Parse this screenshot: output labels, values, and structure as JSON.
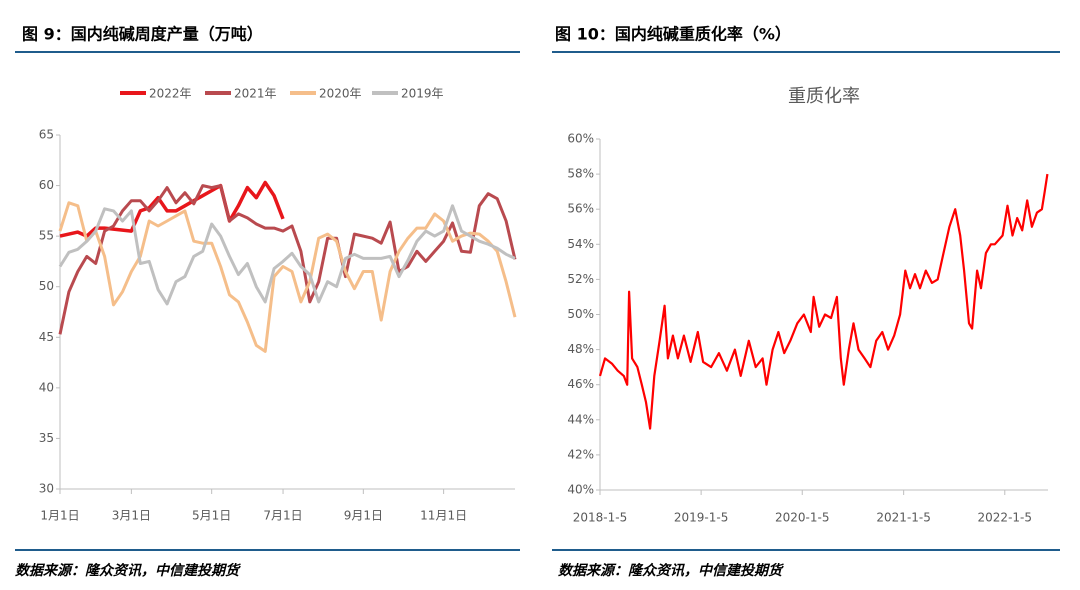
{
  "figures": [
    {
      "caption": "图 9：国内纯碱周度产量（万吨）",
      "source": "数据来源：隆众资讯，中信建投期货"
    },
    {
      "caption": "图 10：国内纯碱重质化率（%）",
      "source": "数据来源：隆众资讯，中信建投期货"
    }
  ],
  "chart_data": [
    {
      "type": "line",
      "legend": "top",
      "categories": [
        "1月1日",
        null,
        null,
        null,
        null,
        null,
        null,
        null,
        "3月1日",
        null,
        null,
        null,
        null,
        null,
        null,
        null,
        null,
        "5月1日",
        null,
        null,
        null,
        null,
        null,
        null,
        null,
        "7月1日",
        null,
        null,
        null,
        null,
        null,
        null,
        null,
        null,
        "9月1日",
        null,
        null,
        null,
        null,
        null,
        null,
        null,
        null,
        "11月1日",
        null,
        null,
        null,
        null,
        null,
        null,
        null,
        null
      ],
      "ylim": [
        30,
        65
      ],
      "yticks": [
        30,
        35,
        40,
        45,
        50,
        55,
        60,
        65
      ],
      "series": [
        {
          "name": "2022年",
          "color": "#e8161b",
          "values": [
            55,
            55.2,
            55.4,
            55,
            55.8,
            55.8,
            55.7,
            55.6,
            55.5,
            57.5,
            57.8,
            58.8,
            57.5,
            57.5,
            58,
            58.5,
            59,
            59.5,
            60,
            56.5,
            58,
            59.8,
            58.8,
            60.3,
            59,
            56.7,
            null,
            null,
            null,
            null,
            null,
            null,
            null,
            null,
            null,
            null,
            null,
            null,
            null,
            null,
            null,
            null,
            null,
            null,
            null,
            null,
            null,
            null,
            null,
            null,
            null,
            null
          ]
        },
        {
          "name": "2021年",
          "color": "#b94a4f",
          "values": [
            45.3,
            49.5,
            51.5,
            53,
            52.3,
            55.5,
            56,
            57.5,
            58.5,
            58.5,
            57.5,
            58.5,
            59.8,
            58.3,
            59.3,
            58.2,
            60,
            59.8,
            60,
            56.5,
            57.2,
            56.8,
            56.2,
            55.8,
            55.8,
            55.5,
            56,
            53.5,
            48.5,
            50.5,
            54.8,
            54.8,
            51,
            55.2,
            55,
            54.8,
            54.3,
            56.4,
            51.5,
            52,
            53.5,
            52.5,
            53.5,
            54.5,
            56.3,
            53.5,
            53.4,
            58,
            59.2,
            58.7,
            56.5,
            52.7
          ]
        },
        {
          "name": "2020年",
          "color": "#f5be8a",
          "values": [
            55.5,
            58.3,
            58,
            54.5,
            55.5,
            53,
            48.2,
            49.5,
            51.5,
            53,
            56.5,
            56,
            56.5,
            57,
            57.5,
            54.5,
            54.3,
            54.3,
            52,
            49.2,
            48.5,
            46.5,
            44.2,
            43.6,
            51,
            52,
            51.5,
            48.5,
            50.5,
            54.8,
            55.2,
            54.5,
            51.5,
            49.8,
            51.5,
            51.5,
            46.7,
            51.5,
            53.5,
            54.8,
            55.8,
            55.8,
            57.2,
            56.5,
            54.5,
            55,
            55.3,
            55.2,
            54.5,
            53.5,
            50.5,
            47
          ]
        },
        {
          "name": "2019年",
          "color": "#c0c0c0",
          "values": [
            52,
            53.4,
            53.7,
            54.5,
            55.5,
            57.7,
            57.5,
            56.5,
            57.5,
            52.3,
            52.5,
            49.7,
            48.3,
            50.5,
            51,
            53,
            53.5,
            56.2,
            55,
            53,
            51.2,
            52.3,
            50,
            48.5,
            51.8,
            52.5,
            53.3,
            52,
            51.2,
            48.5,
            50.5,
            50,
            52.8,
            53.2,
            52.8,
            52.8,
            52.8,
            53,
            51,
            52.6,
            54.5,
            55.5,
            55,
            55.5,
            58,
            55.5,
            55,
            54.5,
            54.2,
            53.8,
            53.2,
            52.8
          ]
        }
      ]
    },
    {
      "type": "line",
      "title": "重质化率",
      "color": "#ff0000",
      "x": [
        "2018-1-5",
        "2018-1-23",
        "2018-2-17",
        "2018-3-10",
        "2018-4-1",
        "2018-4-13",
        "2018-4-20",
        "2018-5-1",
        "2018-5-20",
        "2018-6-5",
        "2018-6-20",
        "2018-7-5",
        "2018-7-20",
        "2018-8-8",
        "2018-8-26",
        "2018-9-7",
        "2018-9-25",
        "2018-10-13",
        "2018-11-4",
        "2018-11-28",
        "2018-12-24",
        "2019-1-12",
        "2019-2-10",
        "2019-3-10",
        "2019-4-8",
        "2019-5-7",
        "2019-5-28",
        "2019-6-26",
        "2019-7-21",
        "2019-8-15",
        "2019-8-29",
        "2019-9-20",
        "2019-10-11",
        "2019-11-1",
        "2019-11-23",
        "2019-12-18",
        "2020-1-11",
        "2020-2-5",
        "2020-2-15",
        "2020-3-6",
        "2020-3-27",
        "2020-4-18",
        "2020-5-9",
        "2020-5-23",
        "2020-6-3",
        "2020-6-21",
        "2020-7-8",
        "2020-7-26",
        "2020-8-17",
        "2020-9-7",
        "2020-9-28",
        "2020-10-20",
        "2020-11-10",
        "2020-12-2",
        "2020-12-23",
        "2021-1-11",
        "2021-1-28",
        "2021-2-15",
        "2021-3-5",
        "2021-3-26",
        "2021-4-17",
        "2021-5-8",
        "2021-5-29",
        "2021-6-19",
        "2021-7-10",
        "2021-7-28",
        "2021-8-11",
        "2021-8-29",
        "2021-9-9",
        "2021-9-27",
        "2021-10-11",
        "2021-10-29",
        "2021-11-16",
        "2021-11-30",
        "2021-12-28",
        "2022-1-15",
        "2022-2-2",
        "2022-2-19",
        "2022-3-9",
        "2022-3-27",
        "2022-4-13",
        "2022-5-1",
        "2022-5-19",
        "2022-5-29",
        "2022-6-8"
      ],
      "values": [
        46.5,
        47.5,
        47.2,
        46.8,
        46.5,
        46,
        51.3,
        47.5,
        47,
        46,
        45,
        43.5,
        46.5,
        48.5,
        50.5,
        47.5,
        48.8,
        47.5,
        48.8,
        47.3,
        49,
        47.3,
        47,
        47.8,
        46.8,
        48,
        46.5,
        48.5,
        47,
        47.5,
        46,
        48,
        49,
        47.8,
        48.5,
        49.5,
        50,
        49,
        51,
        49.3,
        50,
        49.8,
        51,
        47.5,
        46,
        48,
        49.5,
        48,
        47.5,
        47,
        48.5,
        49,
        48,
        48.8,
        50,
        52.5,
        51.5,
        52.3,
        51.5,
        52.5,
        51.8,
        52,
        53.5,
        55,
        56,
        54.5,
        52.5,
        49.5,
        49.2,
        52.5,
        51.5,
        53.5,
        54,
        54,
        54.5,
        56.2,
        54.5,
        55.5,
        54.8,
        56.5,
        55,
        55.8,
        56,
        57,
        58
      ],
      "xlim": [
        "2018-1-5",
        "2022-6-10"
      ],
      "xticks": [
        "2018-1-5",
        "2019-1-5",
        "2020-1-5",
        "2021-1-5",
        "2022-1-5"
      ],
      "ylim": [
        40,
        60
      ],
      "yticks": [
        {
          "value": 40,
          "label": "40%"
        },
        {
          "value": 42,
          "label": "42%"
        },
        {
          "value": 44,
          "label": "44%"
        },
        {
          "value": 46,
          "label": "46%"
        },
        {
          "value": 48,
          "label": "48%"
        },
        {
          "value": 50,
          "label": "50%"
        },
        {
          "value": 52,
          "label": "52%"
        },
        {
          "value": 54,
          "label": "54%"
        },
        {
          "value": 56,
          "label": "56%"
        },
        {
          "value": 58,
          "label": "58%"
        },
        {
          "value": 60,
          "label": "60%"
        }
      ]
    }
  ]
}
